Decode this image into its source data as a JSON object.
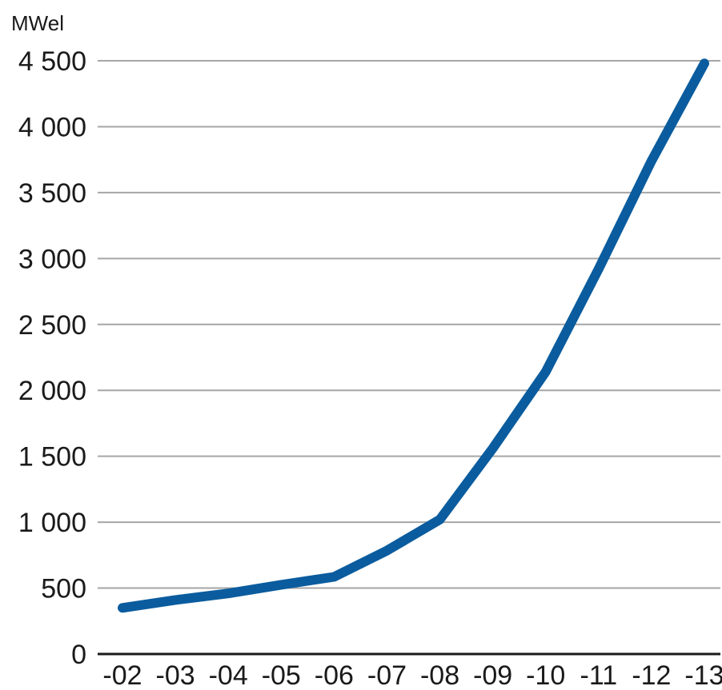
{
  "chart_data": {
    "type": "line",
    "title": "",
    "unit_label": "MWel",
    "xlabel": "",
    "ylabel": "",
    "categories": [
      "-02",
      "-03",
      "-04",
      "-05",
      "-06",
      "-07",
      "-08",
      "-09",
      "-10",
      "-11",
      "-12",
      "-13"
    ],
    "ylim": [
      0,
      4500
    ],
    "yticks": [
      {
        "value": 0,
        "label": "0"
      },
      {
        "value": 500,
        "label": "500"
      },
      {
        "value": 1000,
        "label": "1 000"
      },
      {
        "value": 1500,
        "label": "1 500"
      },
      {
        "value": 2000,
        "label": "2 000"
      },
      {
        "value": 2500,
        "label": "2 500"
      },
      {
        "value": 3000,
        "label": "3 000"
      },
      {
        "value": 3500,
        "label": "3 500"
      },
      {
        "value": 4000,
        "label": "4 000"
      },
      {
        "value": 4500,
        "label": "4 500"
      }
    ],
    "grid": true,
    "legend": "none",
    "series": [
      {
        "color": "#0a5c9e",
        "values": [
          350,
          410,
          460,
          525,
          585,
          785,
          1020,
          1560,
          2140,
          2920,
          3740,
          4480
        ]
      }
    ]
  }
}
